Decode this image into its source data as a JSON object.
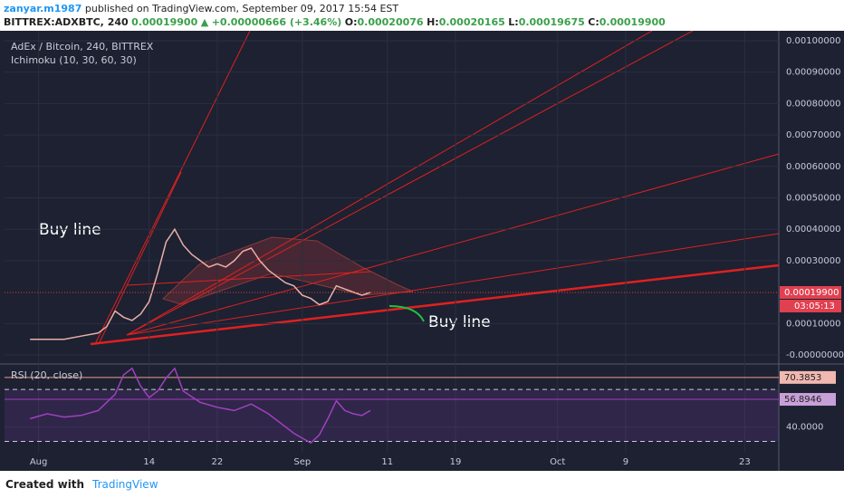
{
  "header": {
    "user": "zanyar.m1987",
    "published": "published on TradingView.com, September 09, 2017 15:54 EST",
    "symbol": "BITTREX:ADXBTC, 240",
    "price": "0.00019900",
    "arrow": "▲",
    "change": "+0.00000666 (+3.46%)",
    "o_label": "O:",
    "o": "0.00020076",
    "h_label": "H:",
    "h": "0.00020165",
    "l_label": "L:",
    "l": "0.00019675",
    "c_label": "C:",
    "c": "0.00019900"
  },
  "annotations": [
    "Buy line",
    "Buy line"
  ],
  "footer": {
    "created": "Created with",
    "brand": "TradingView"
  },
  "chart_data": [
    {
      "type": "line",
      "title": "AdEx / Bitcoin, 240, BITTREX",
      "indicator": "Ichimoku (10, 30, 60, 30)",
      "xlim": [
        -3,
        88
      ],
      "xticks": [
        {
          "value": 1,
          "label": "Aug"
        },
        {
          "value": 14,
          "label": "14"
        },
        {
          "value": 22,
          "label": "22"
        },
        {
          "value": 32,
          "label": "Sep"
        },
        {
          "value": 42,
          "label": "11"
        },
        {
          "value": 50,
          "label": "19"
        },
        {
          "value": 62,
          "label": "Oct"
        },
        {
          "value": 70,
          "label": "9"
        },
        {
          "value": 84,
          "label": "23"
        }
      ],
      "ylim": [
        -2e-05,
        0.00102
      ],
      "yticks": [
        {
          "value": 0.001,
          "label": "0.00100000"
        },
        {
          "value": 0.0009,
          "label": "0.00090000"
        },
        {
          "value": 0.0008,
          "label": "0.00080000"
        },
        {
          "value": 0.0007,
          "label": "0.00070000"
        },
        {
          "value": 0.0006,
          "label": "0.00060000"
        },
        {
          "value": 0.0005,
          "label": "0.00050000"
        },
        {
          "value": 0.0004,
          "label": "0.00040000"
        },
        {
          "value": 0.0003,
          "label": "0.00030000"
        },
        {
          "value": 0.0001,
          "label": "0.00010000"
        },
        {
          "value": 0,
          "label": "-0.00000000"
        }
      ],
      "last_price": {
        "value": 0.000199,
        "label": "0.00019900"
      },
      "countdown": "03:05:13",
      "series": [
        {
          "color": "#e8b0a8",
          "x": [
            0,
            2,
            4,
            6,
            8,
            9,
            10,
            11,
            12,
            13,
            14,
            15,
            16,
            17,
            18,
            19,
            20,
            21,
            22,
            23,
            24,
            25,
            26,
            27,
            28,
            29,
            30,
            31,
            32,
            33,
            34,
            35,
            36,
            37,
            38,
            39,
            40
          ],
          "values": [
            5e-05,
            5e-05,
            5e-05,
            6e-05,
            7e-05,
            9e-05,
            0.00014,
            0.00012,
            0.00011,
            0.00013,
            0.00017,
            0.00026,
            0.00036,
            0.0004,
            0.00035,
            0.00032,
            0.0003,
            0.00028,
            0.00029,
            0.00028,
            0.0003,
            0.00033,
            0.00034,
            0.0003,
            0.00027,
            0.00025,
            0.00023,
            0.00022,
            0.00019,
            0.00018,
            0.00016,
            0.00017,
            0.00022,
            0.00021,
            0.0002,
            0.00019,
            0.000199
          ]
        }
      ]
    },
    {
      "type": "line",
      "xlim": [
        -3,
        88
      ],
      "ylim": [
        24,
        77
      ],
      "yticks": [
        {
          "value": 40,
          "label": "40.0000"
        }
      ],
      "levels": [
        70.3853,
        56.8946
      ],
      "bands": [
        63,
        31
      ],
      "series": [
        {
          "name": "RSI (20, close)",
          "color": "#a040c0",
          "x": [
            0,
            2,
            4,
            6,
            8,
            10,
            11,
            12,
            13,
            14,
            15,
            16,
            17,
            18,
            20,
            22,
            24,
            26,
            28,
            30,
            31,
            32,
            33,
            34,
            35,
            36,
            37,
            38,
            39,
            40
          ],
          "values": [
            45,
            48,
            46,
            47,
            50,
            60,
            72,
            76,
            65,
            58,
            62,
            70,
            76,
            62,
            55,
            52,
            50,
            54,
            48,
            40,
            36,
            33,
            30,
            35,
            45,
            56,
            50,
            48,
            47,
            50
          ]
        }
      ]
    }
  ]
}
